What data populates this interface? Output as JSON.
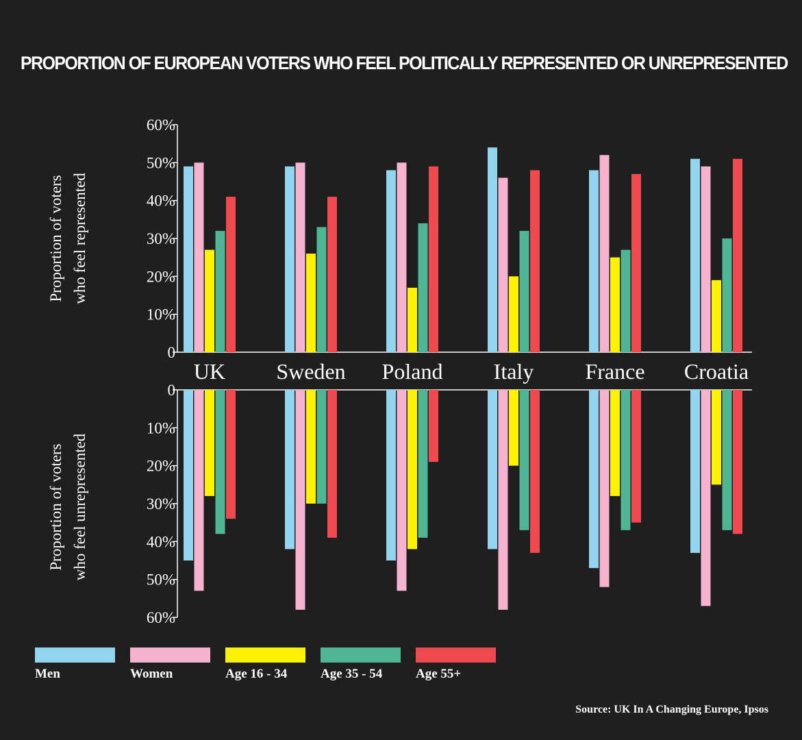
{
  "chart_data": {
    "type": "bar",
    "title": "PROPORTION OF EUROPEAN VOTERS WHO FEEL POLITICALLY REPRESENTED OR UNREPRESENTED",
    "categories": [
      "UK",
      "Sweden",
      "Poland",
      "Italy",
      "France",
      "Croatia"
    ],
    "top_panel": {
      "ylabel_line1": "Proportion of voters",
      "ylabel_line2": "who feel represented",
      "ylim": [
        0,
        60
      ],
      "ticks": [
        "0",
        "10%",
        "20%",
        "30%",
        "40%",
        "50%",
        "60%"
      ],
      "series": [
        {
          "name": "Men",
          "values": [
            49,
            49,
            48,
            54,
            48,
            51
          ]
        },
        {
          "name": "Women",
          "values": [
            50,
            50,
            50,
            46,
            52,
            49
          ]
        },
        {
          "name": "Age 16 - 34",
          "values": [
            27,
            26,
            17,
            20,
            25,
            19
          ]
        },
        {
          "name": "Age 35 - 54",
          "values": [
            32,
            33,
            34,
            32,
            27,
            30
          ]
        },
        {
          "name": "Age 55+",
          "values": [
            41,
            41,
            49,
            48,
            47,
            51
          ]
        }
      ]
    },
    "bottom_panel": {
      "ylabel_line1": "Proportion of voters",
      "ylabel_line2": "who feel unrepresented",
      "ylim": [
        0,
        60
      ],
      "ticks": [
        "0",
        "10%",
        "20%",
        "30%",
        "40%",
        "50%",
        "60%"
      ],
      "series": [
        {
          "name": "Men",
          "values": [
            45,
            42,
            45,
            42,
            47,
            43
          ]
        },
        {
          "name": "Women",
          "values": [
            53,
            58,
            53,
            58,
            52,
            57
          ]
        },
        {
          "name": "Age 16 - 34",
          "values": [
            28,
            30,
            42,
            20,
            28,
            25
          ]
        },
        {
          "name": "Age 35 - 54",
          "values": [
            38,
            30,
            39,
            37,
            37,
            37
          ]
        },
        {
          "name": "Age 55+",
          "values": [
            34,
            39,
            19,
            43,
            35,
            38
          ]
        }
      ]
    },
    "colors": [
      "#93d4ef",
      "#f5b3cf",
      "#fff200",
      "#4fb594",
      "#ef4a4f"
    ],
    "legend": [
      "Men",
      "Women",
      "Age 16 - 34",
      "Age 35 - 54",
      "Age 55+"
    ]
  },
  "source": "Source: UK In A Changing Europe, Ipsos"
}
